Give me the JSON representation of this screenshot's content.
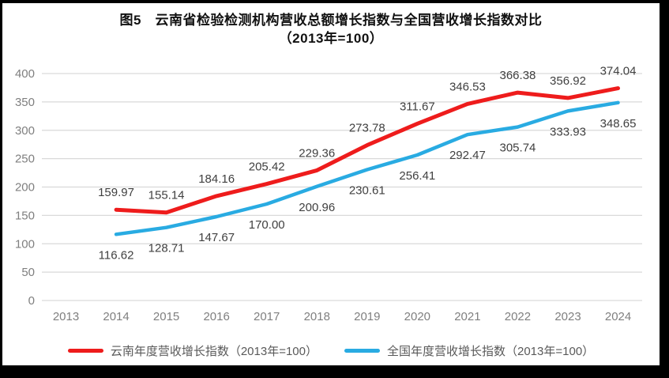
{
  "title": {
    "line1": "图5　云南省检验检测机构营收总额增长指数与全国营收增长指数对比",
    "line2": "（2013年=100）"
  },
  "colors": {
    "frame": "#000000",
    "background": "#ffffff",
    "gridline": "#d9d9d9",
    "tick_label": "#7f7f7f",
    "data_label": "#404040",
    "legend_text": "#595959"
  },
  "chart_data": {
    "type": "line",
    "categories": [
      "2013",
      "2014",
      "2015",
      "2016",
      "2017",
      "2018",
      "2019",
      "2020",
      "2021",
      "2022",
      "2023",
      "2024"
    ],
    "series": [
      {
        "name": "云南年度营收增长指数（2013年=100）",
        "color": "#ee1c1c",
        "values": [
          null,
          159.97,
          155.14,
          184.16,
          205.42,
          229.36,
          273.78,
          311.67,
          346.53,
          366.38,
          356.92,
          374.04
        ]
      },
      {
        "name": "全国年度营收增长指数（2013年=100）",
        "color": "#29abe2",
        "values": [
          null,
          116.62,
          128.71,
          147.67,
          170.0,
          200.96,
          230.61,
          256.41,
          292.47,
          305.74,
          333.93,
          348.65
        ]
      }
    ],
    "ylim": [
      0,
      400
    ],
    "ytick_step": 50,
    "grid": true,
    "legend_position": "bottom",
    "value_decimals": 2
  }
}
